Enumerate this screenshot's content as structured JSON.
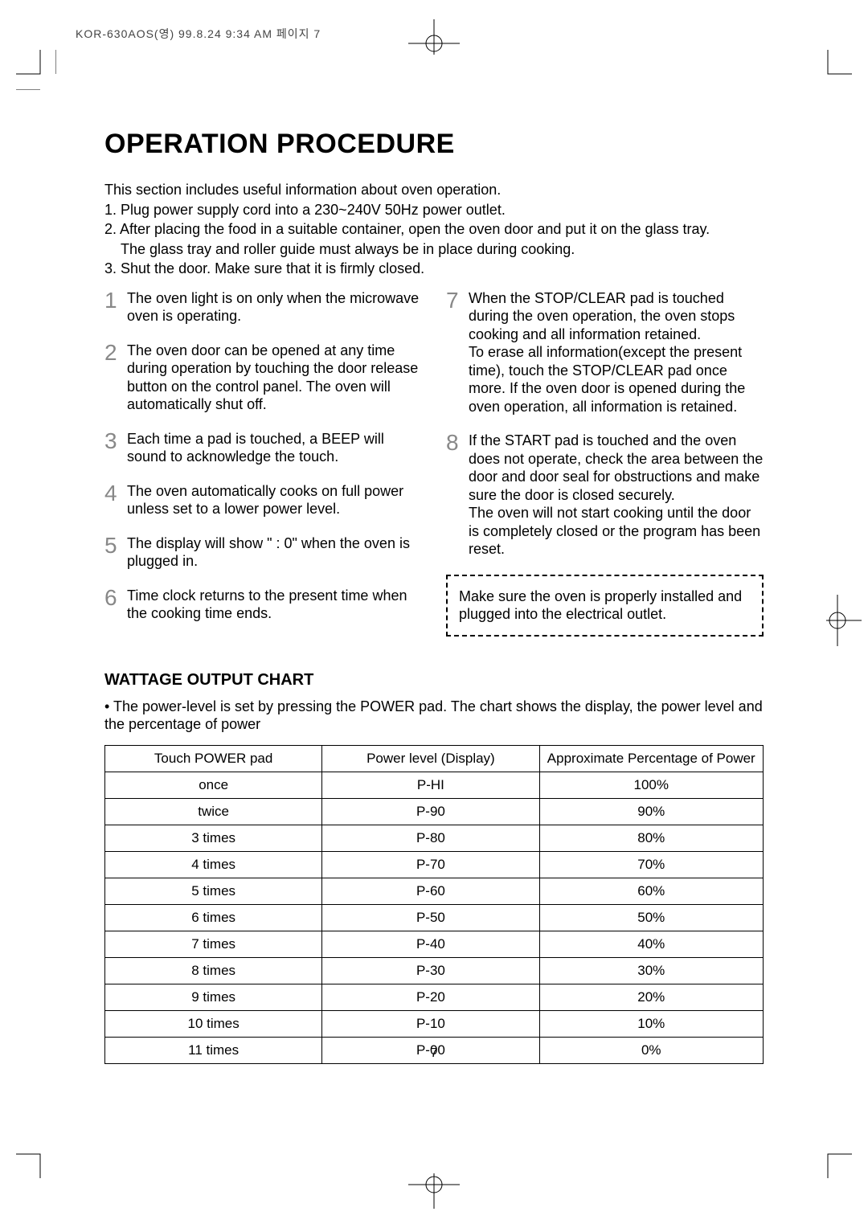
{
  "header": "KOR-630AOS(영)  99.8.24 9:34 AM  페이지 7",
  "title": "OPERATION PROCEDURE",
  "intro": {
    "p0": "This section includes useful information about oven operation.",
    "p1": "1. Plug power supply cord into a 230~240V 50Hz power outlet.",
    "p2": "2. After placing the food in a suitable container, open the oven door and put it on the glass tray.",
    "p2b": "The glass tray and roller guide must always be in place during cooking.",
    "p3": "3. Shut the door. Make sure that it is firmly closed."
  },
  "steps": {
    "s1": {
      "num": "1",
      "text": "The oven light is on only when the microwave oven is operating."
    },
    "s2": {
      "num": "2",
      "text": "The oven door can be opened at any time during operation by touching the door release button on the control panel. The oven will automatically shut off."
    },
    "s3": {
      "num": "3",
      "text": "Each time a pad is touched, a BEEP will sound to acknowledge the touch."
    },
    "s4": {
      "num": "4",
      "text": "The oven automatically cooks on full power unless set to a lower power level."
    },
    "s5": {
      "num": "5",
      "text": "The display will show \" : 0\" when the oven is plugged in."
    },
    "s6": {
      "num": "6",
      "text": "Time clock returns to the present time when the cooking time ends."
    },
    "s7": {
      "num": "7",
      "text": "When the STOP/CLEAR pad is touched during the oven operation, the oven stops cooking and all information retained.\nTo erase all information(except the present time), touch the  STOP/CLEAR pad once more. If the oven door is opened during the oven operation, all information is retained."
    },
    "s8": {
      "num": "8",
      "text": "If the START pad is touched and the oven does not operate, check the area between the door and door seal for obstructions and make sure the door is closed securely.\nThe oven will not start cooking until the door is completely closed or the program has been reset."
    }
  },
  "callout": "Make sure the oven is properly installed and plugged into the electrical outlet.",
  "chartTitle": "WATTAGE OUTPUT CHART",
  "chartIntro": "• The power-level is set by pressing the POWER pad. The chart shows the display, the power level and the percentage of power",
  "table": {
    "columns": [
      "Touch POWER pad",
      "Power level (Display)",
      "Approximate Percentage of Power"
    ],
    "col_widths": [
      "33%",
      "33%",
      "34%"
    ],
    "rows": [
      [
        "once",
        "P-HI",
        "100%"
      ],
      [
        "twice",
        "P-90",
        "90%"
      ],
      [
        "3 times",
        "P-80",
        "80%"
      ],
      [
        "4 times",
        "P-70",
        "70%"
      ],
      [
        "5 times",
        "P-60",
        "60%"
      ],
      [
        "6 times",
        "P-50",
        "50%"
      ],
      [
        "7 times",
        "P-40",
        "40%"
      ],
      [
        "8 times",
        "P-30",
        "30%"
      ],
      [
        "9 times",
        "P-20",
        "20%"
      ],
      [
        "10 times",
        "P-10",
        "10%"
      ],
      [
        "11 times",
        "P-00",
        "0%"
      ]
    ]
  },
  "pageNumber": "7"
}
